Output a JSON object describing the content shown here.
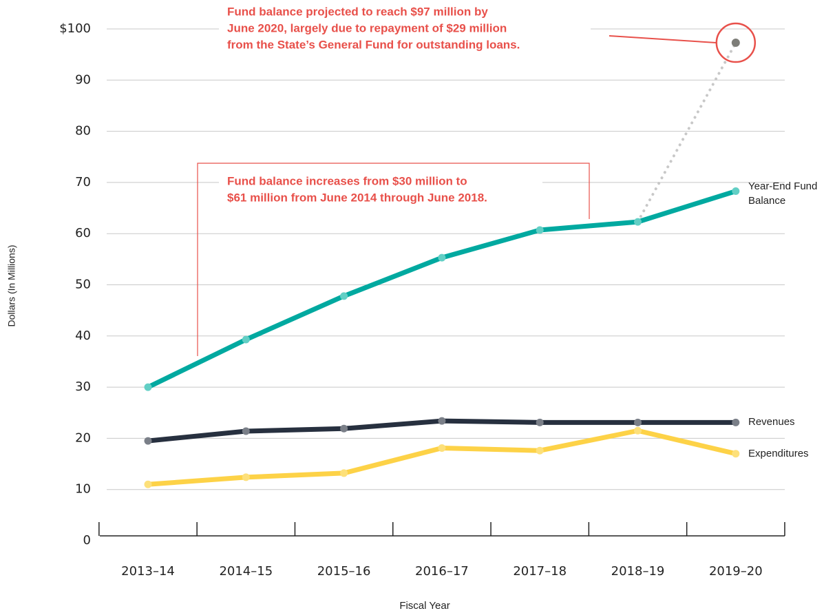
{
  "chart_data": {
    "type": "line",
    "x_label": "Fiscal Year",
    "y_label": "Dollars (In Millions)",
    "categories": [
      "2013–14",
      "2014–15",
      "2015–16",
      "2016–17",
      "2017–18",
      "2018–19",
      "2019–20"
    ],
    "series": [
      {
        "name": "Year-End Fund Balance",
        "color": "#00a9a0",
        "marker_color": "#62cfc5",
        "values": [
          30,
          39.3,
          47.8,
          55.3,
          60.7,
          62.3,
          68.3
        ]
      },
      {
        "name": "Revenues",
        "color": "#27303f",
        "marker_color": "#7a7f88",
        "values": [
          19.5,
          21.4,
          21.9,
          23.4,
          23.1,
          23.1,
          23.1
        ]
      },
      {
        "name": "Expenditures",
        "color": "#fdd247",
        "marker_color": "#fde07a",
        "values": [
          11.0,
          12.4,
          13.2,
          18.1,
          17.6,
          21.5,
          17.0
        ]
      },
      {
        "color": "#c8c8c8",
        "marker_color": "#7d7d78",
        "style": "dotted",
        "values": [
          null,
          null,
          null,
          null,
          null,
          62.3,
          97.3
        ]
      }
    ],
    "ylim": [
      0,
      100
    ],
    "yticks": [
      0,
      10,
      20,
      30,
      40,
      50,
      60,
      70,
      80,
      90,
      {
        "value": 100,
        "label": "$100"
      }
    ],
    "grid": true,
    "annotations": [
      {
        "lines": [
          "Fund balance projected to reach $97 million by",
          "June 2020, largely due to repayment of $29 million",
          "from the State’s General Fund for outstanding loans."
        ],
        "color": "#e8504a"
      },
      {
        "lines": [
          "Fund balance increases from $30 million to",
          "$61 million from June 2014 through June 2018."
        ],
        "color": "#e8504a"
      }
    ]
  }
}
